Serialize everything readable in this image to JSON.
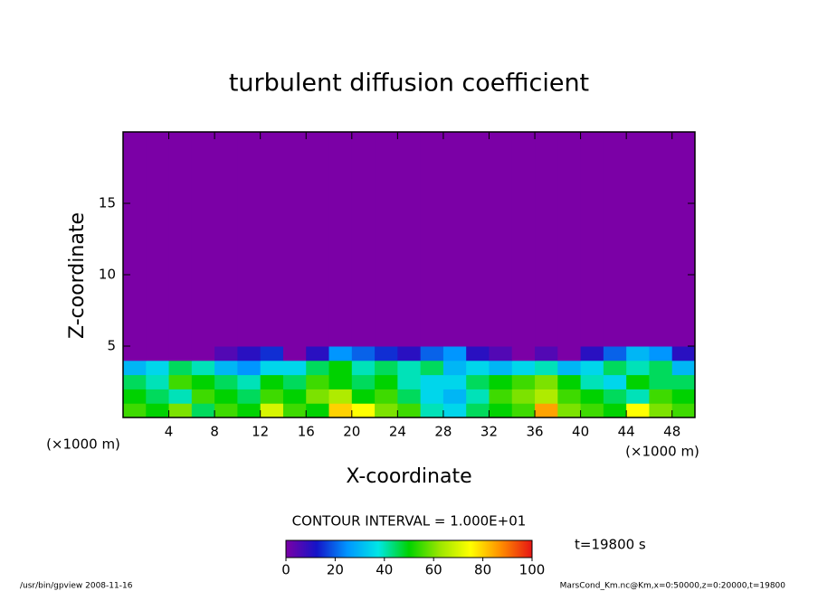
{
  "chart_data": {
    "type": "contour",
    "title": "turbulent diffusion coefficient",
    "x_label": "X-coordinate",
    "y_label": "Z-coordinate",
    "x_unit": "(×1000 m)",
    "y_unit": "(×1000 m)",
    "x_bins": [
      0,
      2,
      4,
      6,
      8,
      10,
      12,
      14,
      16,
      18,
      20,
      22,
      24,
      26,
      28,
      30,
      32,
      34,
      36,
      38,
      40,
      42,
      44,
      46,
      48,
      50
    ],
    "z_bins": [
      0,
      1,
      2,
      3,
      4,
      5,
      20
    ],
    "values": [
      [
        55,
        50,
        60,
        45,
        55,
        50,
        70,
        55,
        50,
        80,
        75,
        60,
        55,
        40,
        35,
        45,
        50,
        55,
        85,
        60,
        55,
        50,
        75,
        60,
        55
      ],
      [
        50,
        45,
        40,
        55,
        50,
        45,
        55,
        50,
        60,
        65,
        50,
        55,
        45,
        35,
        30,
        40,
        55,
        60,
        65,
        55,
        50,
        45,
        40,
        55,
        50
      ],
      [
        45,
        40,
        55,
        50,
        45,
        40,
        50,
        45,
        55,
        50,
        45,
        50,
        40,
        35,
        35,
        45,
        50,
        55,
        60,
        50,
        40,
        35,
        50,
        45,
        45
      ],
      [
        30,
        35,
        45,
        40,
        30,
        25,
        35,
        35,
        45,
        50,
        40,
        45,
        40,
        45,
        30,
        35,
        30,
        35,
        40,
        30,
        35,
        45,
        40,
        45,
        30
      ],
      [
        0,
        0,
        0,
        0,
        5,
        10,
        15,
        0,
        10,
        25,
        20,
        15,
        10,
        20,
        25,
        10,
        5,
        0,
        5,
        0,
        10,
        20,
        30,
        25,
        10
      ],
      [
        0,
        0,
        0,
        0,
        0,
        0,
        0,
        0,
        0,
        0,
        0,
        0,
        0,
        0,
        0,
        0,
        0,
        0,
        0,
        0,
        0,
        0,
        0,
        0,
        0
      ]
    ],
    "xlim": [
      0,
      50
    ],
    "xticks": [
      4,
      8,
      12,
      16,
      20,
      24,
      28,
      32,
      36,
      40,
      44,
      48
    ],
    "ylim": [
      0,
      20
    ],
    "yticks": [
      5,
      10,
      15
    ],
    "zlim": [
      0,
      100
    ],
    "colorbar_ticks": [
      0,
      20,
      40,
      60,
      80,
      100
    ],
    "colormap": [
      "#7b00a6",
      "#1414c8",
      "#0096ff",
      "#00e6e6",
      "#00d200",
      "#9be600",
      "#ffff00",
      "#ff8c00",
      "#e61414"
    ],
    "contour_interval": "CONTOUR INTERVAL = 1.000E+01",
    "time_label": "t=19800 s",
    "footer_left": "/usr/bin/gpview  2008-11-16",
    "footer_right": "MarsCond_Km.nc@Km,x=0:50000,z=0:20000,t=19800"
  }
}
